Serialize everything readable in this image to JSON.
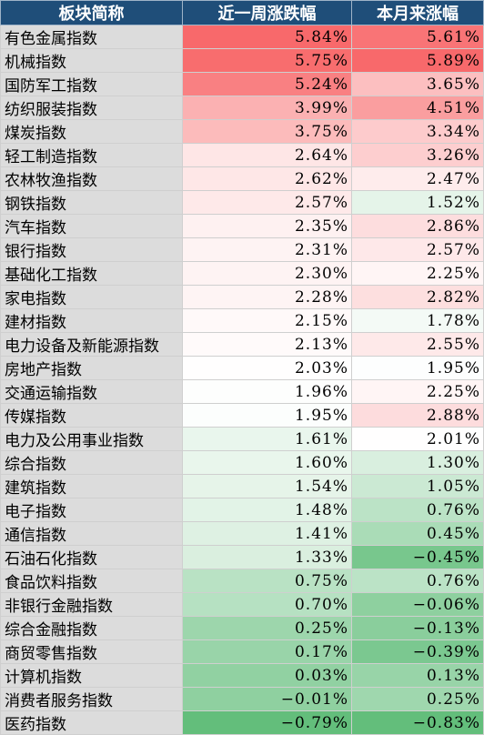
{
  "chart_data": {
    "type": "table",
    "columns": [
      "板块简称",
      "近一周涨跌幅",
      "本月来涨幅"
    ],
    "rows": [
      {
        "name": "有色金属指数",
        "week": 5.84,
        "month": 5.61
      },
      {
        "name": "机械指数",
        "week": 5.75,
        "month": 5.89
      },
      {
        "name": "国防军工指数",
        "week": 5.24,
        "month": 3.65
      },
      {
        "name": "纺织服装指数",
        "week": 3.99,
        "month": 4.51
      },
      {
        "name": "煤炭指数",
        "week": 3.75,
        "month": 3.34
      },
      {
        "name": "轻工制造指数",
        "week": 2.64,
        "month": 3.26
      },
      {
        "name": "农林牧渔指数",
        "week": 2.62,
        "month": 2.47
      },
      {
        "name": "钢铁指数",
        "week": 2.57,
        "month": 1.52
      },
      {
        "name": "汽车指数",
        "week": 2.35,
        "month": 2.86
      },
      {
        "name": "银行指数",
        "week": 2.31,
        "month": 2.57
      },
      {
        "name": "基础化工指数",
        "week": 2.3,
        "month": 2.25
      },
      {
        "name": "家电指数",
        "week": 2.28,
        "month": 2.82
      },
      {
        "name": "建材指数",
        "week": 2.15,
        "month": 1.78
      },
      {
        "name": "电力设备及新能源指数",
        "week": 2.13,
        "month": 2.55
      },
      {
        "name": "房地产指数",
        "week": 2.03,
        "month": 1.95
      },
      {
        "name": "交通运输指数",
        "week": 1.96,
        "month": 2.25
      },
      {
        "name": "传媒指数",
        "week": 1.95,
        "month": 2.88
      },
      {
        "name": "电力及公用事业指数",
        "week": 1.61,
        "month": 2.01
      },
      {
        "name": "综合指数",
        "week": 1.6,
        "month": 1.3
      },
      {
        "name": "建筑指数",
        "week": 1.54,
        "month": 1.05
      },
      {
        "name": "电子指数",
        "week": 1.48,
        "month": 0.76
      },
      {
        "name": "通信指数",
        "week": 1.41,
        "month": 0.45
      },
      {
        "name": "石油石化指数",
        "week": 1.33,
        "month": -0.45
      },
      {
        "name": "食品饮料指数",
        "week": 0.75,
        "month": 0.76
      },
      {
        "name": "非银行金融指数",
        "week": 0.7,
        "month": -0.06
      },
      {
        "name": "综合金融指数",
        "week": 0.25,
        "month": -0.13
      },
      {
        "name": "商贸零售指数",
        "week": 0.17,
        "month": -0.39
      },
      {
        "name": "计算机指数",
        "week": 0.03,
        "month": 0.13
      },
      {
        "name": "消费者服务指数",
        "week": -0.01,
        "month": 0.25
      },
      {
        "name": "医药指数",
        "week": -0.79,
        "month": -0.83
      }
    ],
    "color_scale": {
      "positive": "#f8696b",
      "midpoint": "#ffffff",
      "negative": "#63be7b"
    }
  }
}
